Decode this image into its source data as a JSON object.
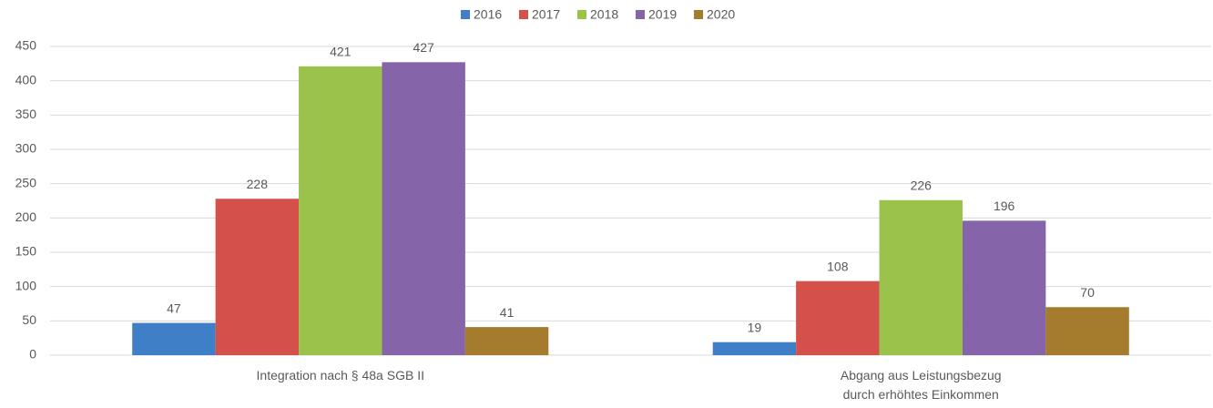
{
  "chart_data": {
    "type": "bar",
    "categories": [
      "Integration nach § 48a SGB II",
      "Abgang aus Leistungsbezug\ndurch erhöhtes Einkommen"
    ],
    "series": [
      {
        "name": "2016",
        "color": "#3f7fc8",
        "values": [
          47,
          19
        ]
      },
      {
        "name": "2017",
        "color": "#d4504a",
        "values": [
          228,
          108
        ]
      },
      {
        "name": "2018",
        "color": "#9bc34c",
        "values": [
          421,
          226
        ]
      },
      {
        "name": "2019",
        "color": "#8664aa",
        "values": [
          427,
          196
        ]
      },
      {
        "name": "2020",
        "color": "#a57c2e",
        "values": [
          41,
          70
        ]
      }
    ],
    "ylim": [
      0,
      450
    ],
    "yticks": [
      0,
      50,
      100,
      150,
      200,
      250,
      300,
      350,
      400,
      450
    ],
    "grid": true,
    "legend": "top"
  }
}
